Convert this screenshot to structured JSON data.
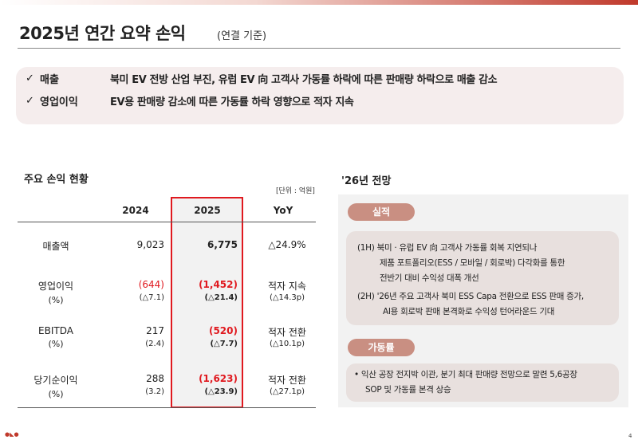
{
  "header": {
    "title": "2025년 연간 요약 손익",
    "subtitle": "(연결 기준)"
  },
  "summary": [
    {
      "check": "✓",
      "label": "매출",
      "text": "북미 EV 전방 산업 부진, 유럽 EV 向 고객사 가동률 하락에 따른 판매량 하락으로 매출 감소"
    },
    {
      "check": "✓",
      "label": "영업이익",
      "text": "EV용 판매량 감소에 따른 가동률 하락 영향으로 적자 지속"
    }
  ],
  "table": {
    "title": "주요 손익 현황",
    "unit": "[단위 : 억원]",
    "columns": [
      "2024",
      "2025",
      "YoY"
    ],
    "rows": [
      {
        "label": "매출액",
        "sublabel": "",
        "v2024": "9,023",
        "s2024": "",
        "v2025": "6,775",
        "s2025": "",
        "yoy": "△24.9%",
        "yoy_sub": ""
      },
      {
        "label": "영업이익",
        "sublabel": "(%)",
        "v2024": "(644)",
        "s2024": "(△7.1)",
        "v2025": "(1,452)",
        "s2025": "(△21.4)",
        "yoy": "적자 지속",
        "yoy_sub": "(△14.3p)"
      },
      {
        "label": "EBITDA",
        "sublabel": "(%)",
        "v2024": "217",
        "s2024": "(2.4)",
        "v2025": "(520)",
        "s2025": "(△7.7)",
        "yoy": "적자 전환",
        "yoy_sub": "(△10.1p)"
      },
      {
        "label": "당기순이익",
        "sublabel": "(%)",
        "v2024": "288",
        "s2024": "(3.2)",
        "v2025": "(1,623)",
        "s2025": "(△23.9)",
        "yoy": "적자 전환",
        "yoy_sub": "(△27.1p)"
      }
    ]
  },
  "outlook": {
    "title": "'26년 전망",
    "performance": {
      "pill": "실적",
      "lines": [
        "(1H) 북미 · 유럽 EV 向 고객사 가동률 회복 지연되나",
        "제품 포트폴리오(ESS / 모바일 / 회로박) 다각화를 통한",
        "전반기 대비 수익성 대폭 개선",
        "(2H) '26년 주요 고객사 북미 ESS Capa 전환으로 ESS 판매 증가,",
        "AI용 회로박 판매 본격화로 수익성 턴어라운드 기대"
      ]
    },
    "utilization": {
      "pill": "가동률",
      "lines": [
        "• 익산 공장 전지박 이관, 분기 최대 판매량 전망으로 말련 5,6공장",
        "SOP 및 가동률 본격 상승"
      ]
    }
  },
  "footer": {
    "page_number": "4",
    "marks": "●◣●"
  },
  "colors": {
    "accent_red": "#e0191f",
    "pill": "#c98f82",
    "summary_bg": "#f5eded"
  }
}
